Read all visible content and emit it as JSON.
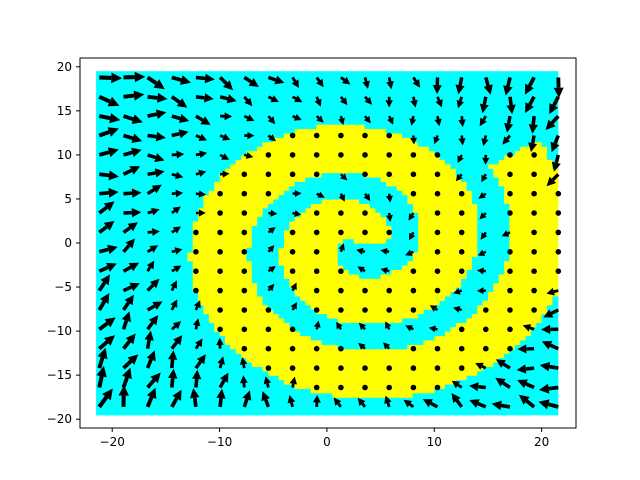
{
  "chart_data": {
    "type": "quiver-contour",
    "title": "",
    "xlabel": "",
    "ylabel": "",
    "xlim": [
      -23,
      23.2
    ],
    "ylim": [
      -21,
      21
    ],
    "x_ticks": [
      -20,
      -10,
      0,
      10,
      20
    ],
    "y_ticks": [
      -20,
      -15,
      -10,
      -5,
      0,
      5,
      10,
      15,
      20
    ],
    "x_tick_labels": [
      "−20",
      "−10",
      "0",
      "10",
      "20"
    ],
    "y_tick_labels": [
      "−20",
      "−15",
      "−10",
      "−5",
      "0",
      "5",
      "10",
      "15",
      "20"
    ],
    "grid": false,
    "legend": "none",
    "field_region": {
      "x": [
        -21.5,
        21.5
      ],
      "y": [
        -19.5,
        19.5
      ]
    },
    "spiral": {
      "center": [
        2.8,
        0.0
      ],
      "turns": 2.05,
      "growth_per_turn": 8.5,
      "band_width": 5.5
    },
    "region_colors": {
      "outside_band": "#00ffff",
      "inside_band": "#ffff00"
    },
    "point_grid": {
      "x_start": -21.2,
      "x_step": 2.25,
      "y_start": -18.6,
      "y_step": 2.2
    },
    "colors": {
      "accent": "#000000",
      "background": "#ffffff",
      "band_a": "#ffff00",
      "band_b": "#00ffff"
    }
  }
}
